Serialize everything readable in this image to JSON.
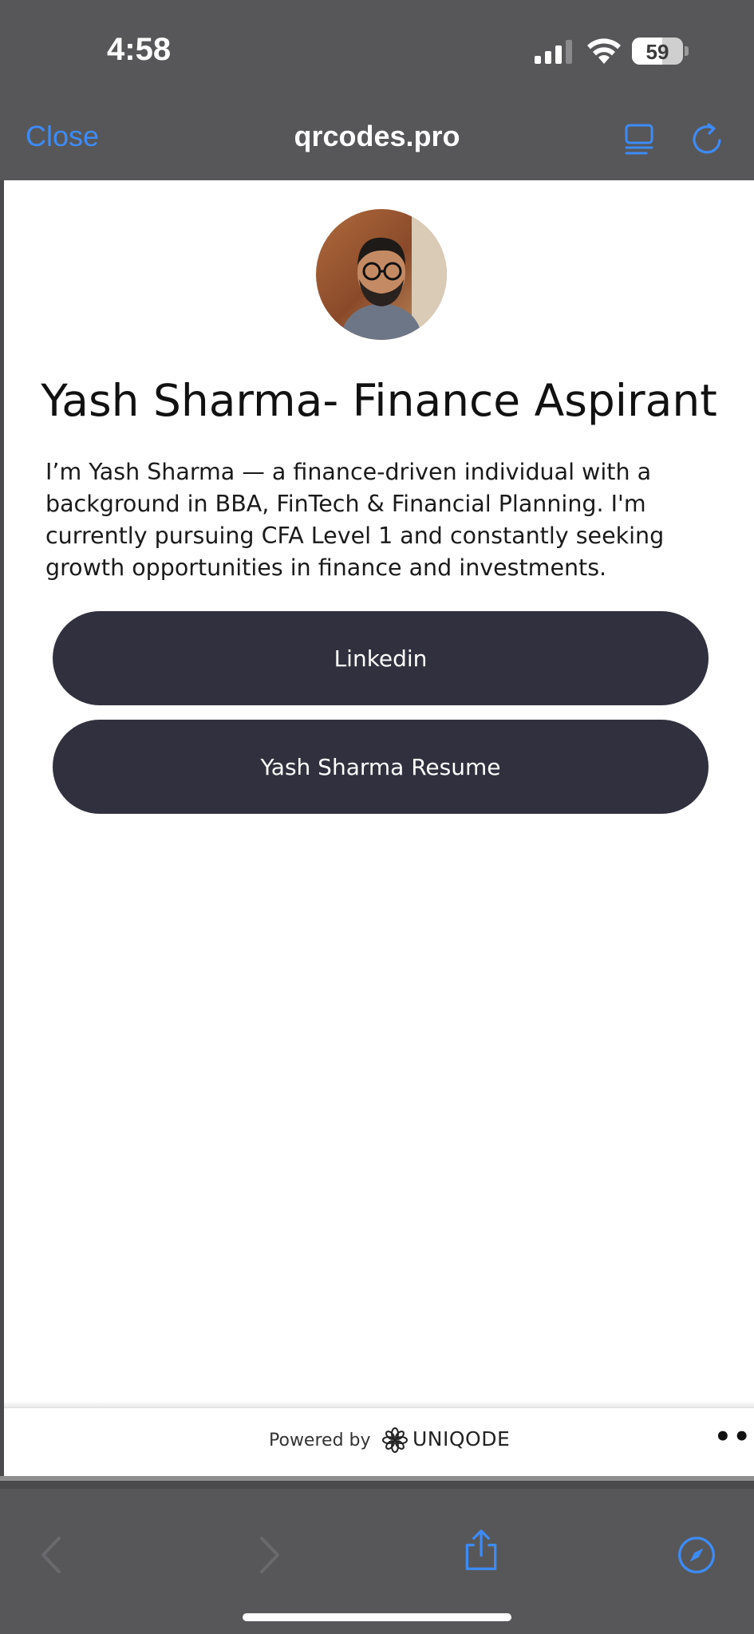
{
  "status_bar": {
    "time": "4:58",
    "battery_percent": 59,
    "battery_label": "59",
    "signal_bars_active": 3,
    "signal_bars_total": 4
  },
  "browser": {
    "close_label": "Close",
    "url": "qrcodes.pro",
    "accent_color": "#3d8bf7"
  },
  "profile": {
    "name_title": "Yash Sharma- Finance Aspirant",
    "bio": "I’m Yash Sharma — a finance-driven individual with a background in BBA, FinTech & Financial Planning. I'm currently pursuing CFA Level 1 and constantly seeking growth opportunities in finance and investments.",
    "links": [
      {
        "label": "Linkedin"
      },
      {
        "label": "Yash Sharma Resume"
      }
    ],
    "button_color": "#31303f"
  },
  "footer": {
    "powered_by": "Powered by",
    "brand": "UNIQODE",
    "more": "•••"
  },
  "toolbar": {
    "icons": [
      "back-icon",
      "forward-icon",
      "share-icon",
      "compass-icon"
    ]
  }
}
